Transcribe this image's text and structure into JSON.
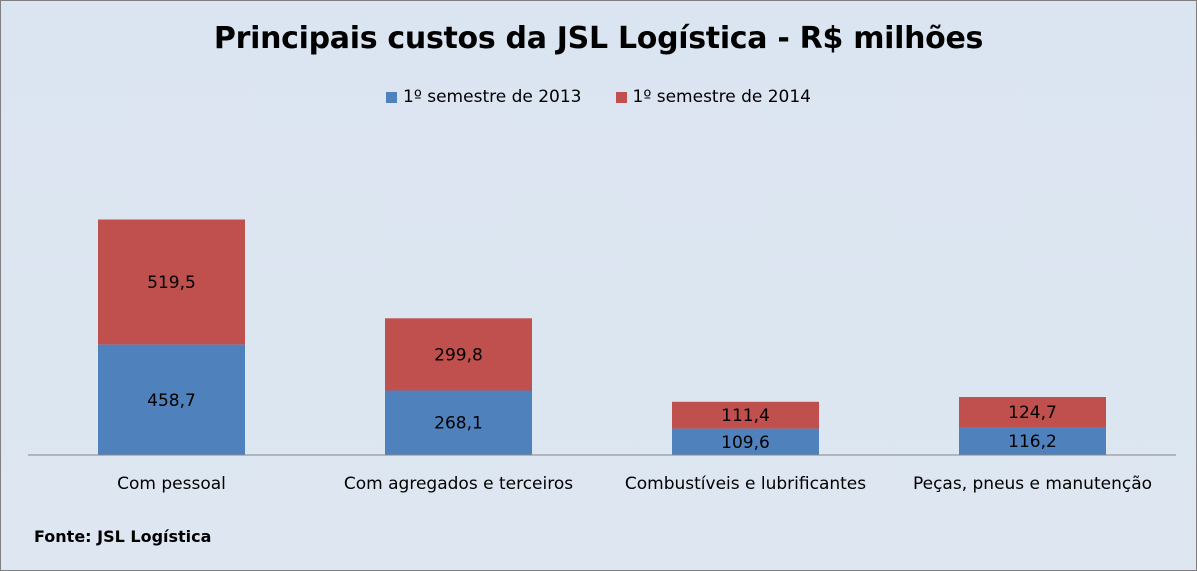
{
  "chart_data": {
    "type": "bar",
    "stacked": true,
    "title": "Principais custos da JSL Logística - R$ milhões",
    "categories": [
      "Com pessoal",
      "Com agregados e terceiros",
      "Combustíveis e lubrificantes",
      "Peças, pneus e manutenção"
    ],
    "series": [
      {
        "name": "1º semestre de 2013",
        "color": "#4f81bd",
        "values": [
          458.7,
          268.1,
          109.6,
          116.2
        ],
        "labels": [
          "458,7",
          "268,1",
          "109,6",
          "116,2"
        ]
      },
      {
        "name": "1º semestre de 2014",
        "color": "#c0504d",
        "values": [
          519.5,
          299.8,
          111.4,
          124.7
        ],
        "labels": [
          "519,5",
          "299,8",
          "111,4",
          "124,7"
        ]
      }
    ],
    "legend_position": "top",
    "gridlines": false,
    "ylim": [
      0,
      1200
    ],
    "source": "Fonte: JSL Logística"
  }
}
